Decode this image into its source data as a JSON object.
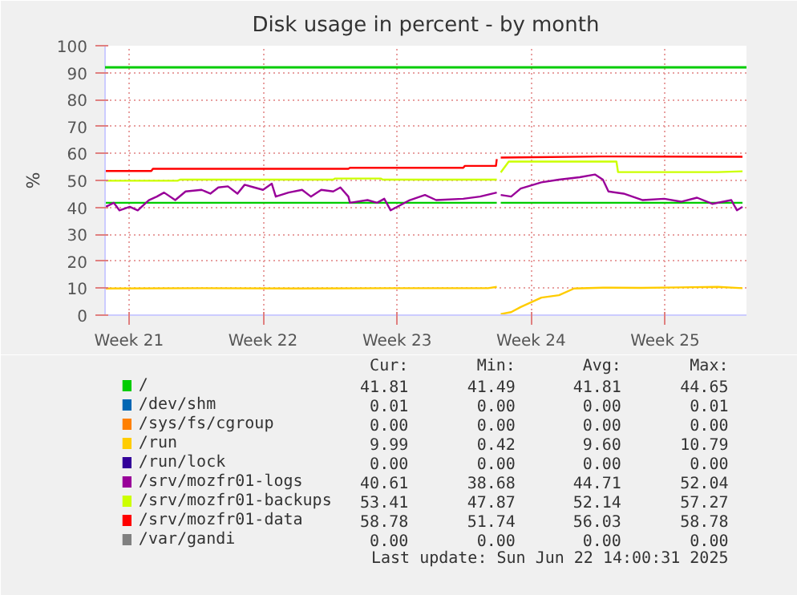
{
  "chart_data": {
    "type": "line",
    "title": "Disk usage in percent - by month",
    "ylabel": "%",
    "xlim": [
      "2025-05-20T06:00",
      "2025-06-22T18:00"
    ],
    "xticks": [
      {
        "value": "2025-05-21T12:00",
        "label": "Week 21"
      },
      {
        "value": "2025-05-28T12:00",
        "label": "Week 22"
      },
      {
        "value": "2025-06-04T12:00",
        "label": "Week 23"
      },
      {
        "value": "2025-06-11T12:00",
        "label": "Week 24"
      },
      {
        "value": "2025-06-18T12:00",
        "label": "Week 25"
      }
    ],
    "ylim": [
      0,
      100
    ],
    "yticks": [
      0,
      10,
      20,
      30,
      40,
      50,
      60,
      70,
      80,
      90,
      100
    ],
    "grid": true,
    "legend": "bottom",
    "ref_lines": [
      {
        "axis": "y",
        "value": 92,
        "color": "#00cc00"
      }
    ],
    "series": [
      {
        "name": "/",
        "color": "#00cc00",
        "x": [
          "2025-05-20T06:00",
          "2025-06-09T17:00",
          "2025-06-09T20:00",
          "2025-06-09T22:00",
          "2025-06-22T13:00"
        ],
        "values": [
          41.7,
          41.7,
          null,
          41.7,
          41.7
        ]
      },
      {
        "name": "/dev/shm",
        "color": "#0066b3"
      },
      {
        "name": "/sys/fs/cgroup",
        "color": "#ff8000"
      },
      {
        "name": "/run",
        "color": "#ffcc00",
        "x": [
          "2025-05-20T06:00",
          "2025-05-25T06:00",
          "2025-05-30T06:00",
          "2025-06-04T06:00",
          "2025-06-09T06:00",
          "2025-06-09T17:00",
          "2025-06-09T20:00",
          "2025-06-09T22:00",
          "2025-06-10T11:00",
          "2025-06-10T23:00",
          "2025-06-12T01:00",
          "2025-06-12T23:00",
          "2025-06-13T18:00",
          "2025-06-15T06:00",
          "2025-06-17T06:00",
          "2025-06-19T06:00",
          "2025-06-21T06:00",
          "2025-06-22T13:00"
        ],
        "values": [
          9.9,
          10,
          9.9,
          10,
          10,
          10.5,
          null,
          0.4,
          1.1,
          3,
          6.5,
          7.4,
          9.9,
          10.2,
          10.1,
          10.3,
          10.5,
          10
        ]
      },
      {
        "name": "/run/lock",
        "color": "#330099"
      },
      {
        "name": "/srv/mozfr01-logs",
        "color": "#990099",
        "x": [
          "2025-05-20T07:00",
          "2025-05-20T17:00",
          "2025-05-21T00:00",
          "2025-05-21T13:00",
          "2025-05-21T23:00",
          "2025-05-22T13:00",
          "2025-05-22T23:00",
          "2025-05-23T08:00",
          "2025-05-23T22:00",
          "2025-05-24T11:00",
          "2025-05-25T07:00",
          "2025-05-25T18:00",
          "2025-05-26T04:00",
          "2025-05-26T16:00",
          "2025-05-27T04:00",
          "2025-05-27T13:00",
          "2025-05-28T01:00",
          "2025-05-28T12:00",
          "2025-05-28T23:00",
          "2025-05-29T04:00",
          "2025-05-29T20:00",
          "2025-05-30T13:00",
          "2025-05-31T00:00",
          "2025-05-31T13:00",
          "2025-06-01T04:00",
          "2025-06-01T13:00",
          "2025-06-01T23:00",
          "2025-06-02T01:00",
          "2025-06-02T23:00",
          "2025-06-03T11:00",
          "2025-06-03T20:00",
          "2025-06-04T04:00",
          "2025-06-05T04:00",
          "2025-06-05T23:00",
          "2025-06-06T13:00",
          "2025-06-07T23:00",
          "2025-06-08T20:00",
          "2025-06-09T17:00",
          "2025-06-09T20:00",
          "2025-06-09T22:00",
          "2025-06-10T11:00",
          "2025-06-10T23:00",
          "2025-06-12T01:00",
          "2025-06-12T23:00",
          "2025-06-14T01:00",
          "2025-06-14T20:00",
          "2025-06-15T06:00",
          "2025-06-15T13:00",
          "2025-06-16T08:00",
          "2025-06-17T08:00",
          "2025-06-18T11:00",
          "2025-06-19T08:00",
          "2025-06-20T04:00",
          "2025-06-20T23:00",
          "2025-06-21T23:00",
          "2025-06-22T06:00",
          "2025-06-22T13:00"
        ],
        "values": [
          40.2,
          41.7,
          38.9,
          40.2,
          38.9,
          42.7,
          44,
          45.5,
          42.7,
          45.9,
          46.5,
          45.1,
          47.4,
          47.8,
          45.1,
          48.4,
          47.4,
          46.5,
          48.8,
          44,
          45.5,
          46.5,
          44,
          46.5,
          45.9,
          47.4,
          44,
          41.7,
          42.7,
          41.7,
          43.2,
          38.9,
          42.7,
          44.6,
          42.7,
          43.2,
          44,
          45.5,
          null,
          44.6,
          44,
          47,
          49.3,
          50.3,
          51.2,
          52.2,
          50.3,
          45.9,
          45.1,
          42.7,
          43.2,
          42.1,
          43.6,
          41.3,
          42.7,
          38.9,
          40.2
        ]
      },
      {
        "name": "/srv/mozfr01-backups",
        "color": "#ccff00",
        "x": [
          "2025-05-20T06:00",
          "2025-05-24T01:00",
          "2025-05-24T04:00",
          "2025-06-01T04:00",
          "2025-06-01T06:00",
          "2025-06-03T16:00",
          "2025-06-03T18:00",
          "2025-06-09T17:00",
          "2025-06-09T20:00",
          "2025-06-09T22:00",
          "2025-06-10T08:00",
          "2025-06-15T23:00",
          "2025-06-16T01:00",
          "2025-06-21T06:00",
          "2025-06-22T13:00"
        ],
        "values": [
          49.9,
          49.9,
          50.3,
          50.3,
          50.7,
          50.7,
          50.3,
          50.3,
          null,
          53,
          57,
          57,
          53.1,
          53.1,
          53.4
        ]
      },
      {
        "name": "/srv/mozfr01-data",
        "color": "#ff0000",
        "x": [
          "2025-05-20T06:00",
          "2025-05-22T16:00",
          "2025-05-22T18:00",
          "2025-06-01T23:00",
          "2025-06-02T01:00",
          "2025-06-07T23:00",
          "2025-06-08T01:00",
          "2025-06-09T16:00",
          "2025-06-09T17:00",
          "2025-06-09T20:00",
          "2025-06-09T22:00",
          "2025-06-15T04:00",
          "2025-06-22T13:00"
        ],
        "values": [
          53.5,
          53.5,
          54.3,
          54.3,
          54.7,
          54.7,
          55.4,
          55.4,
          57.9,
          null,
          58.5,
          58.9,
          58.8
        ]
      },
      {
        "name": "/var/gandi",
        "color": "#808080"
      }
    ],
    "annotations": [
      "Cur:",
      "Min:",
      "Avg:",
      "Max:",
      "41.81",
      "41.49",
      "41.81",
      "44.65",
      "0.01",
      "0.00",
      "0.00",
      "0.01",
      "0.00",
      "0.00",
      "0.00",
      "0.00",
      "9.99",
      "0.42",
      "9.60",
      "10.79",
      "0.00",
      "0.00",
      "0.00",
      "0.00",
      "40.61",
      "38.68",
      "44.71",
      "52.04",
      "53.41",
      "47.87",
      "52.14",
      "57.27",
      "58.78",
      "51.74",
      "56.03",
      "58.78",
      "0.00",
      "0.00",
      "0.00",
      "0.00",
      "Last update: Sun Jun 22 14:00:31 2025"
    ]
  }
}
